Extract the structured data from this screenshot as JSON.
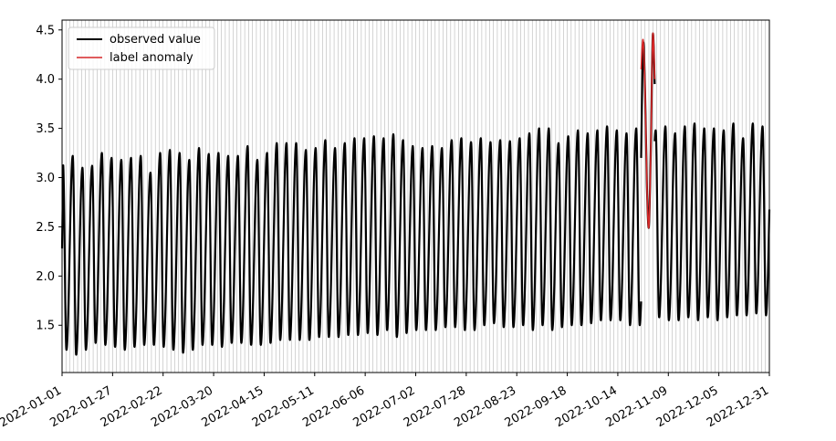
{
  "chart_data": {
    "type": "line",
    "title": "",
    "xlabel": "",
    "ylabel": "",
    "xlim": [
      "2022-01-01",
      "2022-12-31"
    ],
    "ylim": [
      1.02,
      4.6
    ],
    "x_ticks": [
      "2022-01-01",
      "2022-01-27",
      "2022-02-22",
      "2022-03-20",
      "2022-04-15",
      "2022-05-11",
      "2022-06-06",
      "2022-07-02",
      "2022-07-28",
      "2022-08-23",
      "2022-09-18",
      "2022-10-14",
      "2022-11-09",
      "2022-12-05",
      "2022-12-31"
    ],
    "y_ticks": [
      "1.5",
      "2.0",
      "2.5",
      "3.0",
      "3.5",
      "4.0",
      "4.5"
    ],
    "grid": "vertical lines every 2 days",
    "legend": {
      "placement": "top-left",
      "entries": [
        {
          "label": "observed value",
          "color": "#000000"
        },
        {
          "label": "label anomaly",
          "color": "#d62728"
        }
      ]
    },
    "series": [
      {
        "name": "observed value",
        "color": "#000000",
        "kind": "periodic",
        "period_days": 5,
        "peaks": [
          3.14,
          3.22,
          3.1,
          3.12,
          3.25,
          3.2,
          3.18,
          3.2,
          3.22,
          3.05,
          3.25,
          3.28,
          3.25,
          3.18,
          3.3,
          3.24,
          3.25,
          3.22,
          3.22,
          3.32,
          3.18,
          3.25,
          3.35,
          3.35,
          3.35,
          3.28,
          3.3,
          3.38,
          3.3,
          3.35,
          3.4,
          3.4,
          3.42,
          3.4,
          3.44,
          3.38,
          3.32,
          3.3,
          3.32,
          3.3,
          3.38,
          3.4,
          3.36,
          3.4,
          3.36,
          3.38,
          3.37,
          3.4,
          3.45,
          3.5,
          3.5,
          3.35,
          3.42,
          3.48,
          3.45,
          3.48,
          3.52,
          3.48,
          3.45,
          3.5,
          3.42,
          3.48,
          3.52,
          3.45,
          3.52,
          3.55,
          3.5,
          3.5,
          3.48,
          3.55,
          3.4,
          3.55,
          3.52
        ],
        "troughs": [
          1.25,
          1.2,
          1.25,
          1.32,
          1.3,
          1.28,
          1.25,
          1.28,
          1.3,
          1.3,
          1.28,
          1.25,
          1.22,
          1.25,
          1.3,
          1.3,
          1.28,
          1.32,
          1.32,
          1.3,
          1.3,
          1.32,
          1.35,
          1.35,
          1.35,
          1.35,
          1.38,
          1.38,
          1.38,
          1.4,
          1.4,
          1.42,
          1.4,
          1.45,
          1.38,
          1.42,
          1.45,
          1.45,
          1.45,
          1.48,
          1.48,
          1.45,
          1.45,
          1.5,
          1.52,
          1.48,
          1.48,
          1.5,
          1.45,
          1.5,
          1.45,
          1.48,
          1.5,
          1.5,
          1.52,
          1.55,
          1.55,
          1.55,
          1.5,
          1.5,
          1.55,
          1.58,
          1.55,
          1.55,
          1.58,
          1.55,
          1.58,
          1.55,
          1.58,
          1.6,
          1.6,
          1.62,
          1.6
        ],
        "anomaly_window": {
          "start": "2022-10-26",
          "end": "2022-11-02",
          "points": [
            [
              "2022-10-26",
              3.2
            ],
            [
              "2022-10-27",
              4.35
            ],
            [
              "2022-10-28",
              3.9
            ],
            [
              "2022-10-29",
              2.9
            ],
            [
              "2022-10-30",
              2.5
            ],
            [
              "2022-10-31",
              3.3
            ],
            [
              "2022-11-01",
              4.45
            ],
            [
              "2022-11-02",
              3.95
            ]
          ]
        }
      },
      {
        "name": "label anomaly",
        "color": "#d62728",
        "points": [
          [
            "2022-10-26",
            4.1
          ],
          [
            "2022-10-27",
            4.4
          ],
          [
            "2022-10-28",
            3.9
          ],
          [
            "2022-10-29",
            2.9
          ],
          [
            "2022-10-30",
            2.5
          ],
          [
            "2022-10-31",
            3.3
          ],
          [
            "2022-11-01",
            4.45
          ],
          [
            "2022-11-02",
            4.0
          ]
        ]
      }
    ]
  }
}
